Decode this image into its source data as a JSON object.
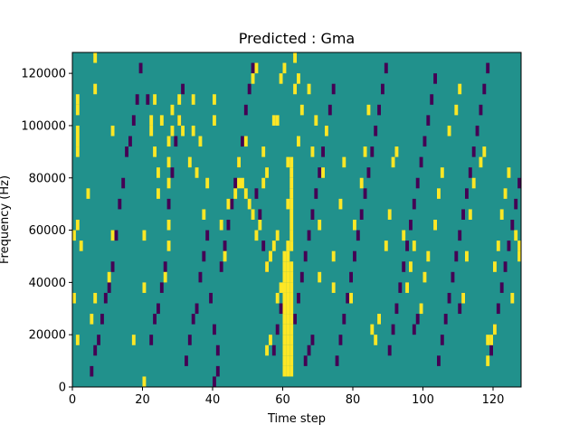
{
  "chart_data": {
    "type": "heatmap",
    "title": "Predicted : Gma",
    "xlabel": "Time step",
    "ylabel": "Frequency (Hz)",
    "xlim": [
      0,
      128
    ],
    "ylim": [
      0,
      128000
    ],
    "xticks": [
      0,
      20,
      40,
      60,
      80,
      100,
      120
    ],
    "yticks": [
      0,
      20000,
      40000,
      60000,
      80000,
      100000,
      120000
    ],
    "n_bins": 32,
    "bin_height_hz": 4000,
    "grid": false,
    "colors": {
      "background": "#21918c",
      "high": "#fde725",
      "low": "#440154"
    },
    "high_cells": [
      [
        60,
        1
      ],
      [
        61,
        1
      ],
      [
        62,
        1
      ],
      [
        60,
        2
      ],
      [
        61,
        2
      ],
      [
        62,
        2
      ],
      [
        60,
        3
      ],
      [
        61,
        3
      ],
      [
        62,
        3
      ],
      [
        60,
        4
      ],
      [
        61,
        4
      ],
      [
        62,
        4
      ],
      [
        60,
        5
      ],
      [
        61,
        5
      ],
      [
        62,
        5
      ],
      [
        60,
        6
      ],
      [
        61,
        6
      ],
      [
        62,
        6
      ],
      [
        60,
        7
      ],
      [
        61,
        7
      ],
      [
        62,
        7
      ],
      [
        60,
        8
      ],
      [
        61,
        8
      ],
      [
        62,
        8
      ],
      [
        60,
        9
      ],
      [
        61,
        9
      ],
      [
        62,
        9
      ],
      [
        60,
        10
      ],
      [
        61,
        10
      ],
      [
        62,
        10
      ],
      [
        60,
        11
      ],
      [
        61,
        11
      ],
      [
        62,
        11
      ],
      [
        60,
        12
      ],
      [
        61,
        12
      ],
      [
        61,
        13
      ],
      [
        62,
        13
      ],
      [
        62,
        14
      ],
      [
        62,
        15
      ],
      [
        62,
        16
      ],
      [
        61,
        17
      ],
      [
        62,
        17
      ],
      [
        62,
        18
      ],
      [
        62,
        19
      ],
      [
        62,
        20
      ],
      [
        61,
        21
      ],
      [
        62,
        21
      ],
      [
        47,
        19
      ],
      [
        48,
        19
      ],
      [
        49,
        18
      ],
      [
        50,
        17
      ],
      [
        51,
        16
      ],
      [
        52,
        14
      ],
      [
        53,
        15
      ],
      [
        55,
        11
      ],
      [
        56,
        12
      ],
      [
        57,
        13
      ],
      [
        58,
        14
      ],
      [
        59,
        9
      ],
      [
        58,
        8
      ],
      [
        55,
        3
      ],
      [
        56,
        4
      ],
      [
        20,
        0
      ],
      [
        1,
        4
      ],
      [
        2,
        13
      ],
      [
        1,
        15
      ],
      [
        4,
        18
      ],
      [
        1,
        22
      ],
      [
        1,
        23
      ],
      [
        1,
        24
      ],
      [
        1,
        26
      ],
      [
        1,
        27
      ],
      [
        0,
        14
      ],
      [
        0,
        8
      ],
      [
        5,
        6
      ],
      [
        6,
        8
      ],
      [
        6,
        28
      ],
      [
        6,
        31
      ],
      [
        10,
        10
      ],
      [
        11,
        14
      ],
      [
        11,
        24
      ],
      [
        17,
        4
      ],
      [
        20,
        9
      ],
      [
        20,
        14
      ],
      [
        22,
        24
      ],
      [
        22,
        25
      ],
      [
        23,
        22
      ],
      [
        23,
        27
      ],
      [
        24,
        18
      ],
      [
        24,
        20
      ],
      [
        25,
        25
      ],
      [
        26,
        10
      ],
      [
        27,
        13
      ],
      [
        27,
        15
      ],
      [
        27,
        19
      ],
      [
        27,
        21
      ],
      [
        27,
        23
      ],
      [
        28,
        24
      ],
      [
        28,
        26
      ],
      [
        30,
        25
      ],
      [
        30,
        27
      ],
      [
        31,
        24
      ],
      [
        33,
        21
      ],
      [
        34,
        27
      ],
      [
        35,
        20
      ],
      [
        34,
        24
      ],
      [
        36,
        23
      ],
      [
        37,
        16
      ],
      [
        38,
        19
      ],
      [
        40,
        25
      ],
      [
        40,
        27
      ],
      [
        42,
        15
      ],
      [
        43,
        12
      ],
      [
        44,
        17
      ],
      [
        46,
        18
      ],
      [
        47,
        21
      ],
      [
        49,
        23
      ],
      [
        51,
        29
      ],
      [
        52,
        30
      ],
      [
        54,
        19
      ],
      [
        54,
        22
      ],
      [
        55,
        20
      ],
      [
        56,
        12
      ],
      [
        57,
        25
      ],
      [
        58,
        25
      ],
      [
        59,
        29
      ],
      [
        60,
        30
      ],
      [
        63,
        28
      ],
      [
        63,
        31
      ],
      [
        64,
        23
      ],
      [
        64,
        29
      ],
      [
        65,
        26
      ],
      [
        67,
        28
      ],
      [
        68,
        22
      ],
      [
        69,
        25
      ],
      [
        70,
        10
      ],
      [
        70,
        15
      ],
      [
        71,
        20
      ],
      [
        72,
        24
      ],
      [
        74,
        9
      ],
      [
        74,
        12
      ],
      [
        76,
        17
      ],
      [
        77,
        21
      ],
      [
        79,
        8
      ],
      [
        80,
        15
      ],
      [
        82,
        19
      ],
      [
        83,
        22
      ],
      [
        84,
        26
      ],
      [
        85,
        5
      ],
      [
        86,
        4
      ],
      [
        87,
        6
      ],
      [
        89,
        13
      ],
      [
        90,
        16
      ],
      [
        91,
        21
      ],
      [
        92,
        22
      ],
      [
        94,
        14
      ],
      [
        95,
        9
      ],
      [
        96,
        11
      ],
      [
        97,
        13
      ],
      [
        99,
        7
      ],
      [
        100,
        10
      ],
      [
        101,
        12
      ],
      [
        103,
        15
      ],
      [
        104,
        18
      ],
      [
        105,
        20
      ],
      [
        107,
        24
      ],
      [
        109,
        26
      ],
      [
        110,
        28
      ],
      [
        111,
        8
      ],
      [
        112,
        12
      ],
      [
        113,
        16
      ],
      [
        114,
        19
      ],
      [
        116,
        21
      ],
      [
        117,
        22
      ],
      [
        118,
        4
      ],
      [
        118,
        2
      ],
      [
        119,
        4
      ],
      [
        120,
        5
      ],
      [
        120,
        11
      ],
      [
        121,
        13
      ],
      [
        122,
        16
      ],
      [
        123,
        18
      ],
      [
        124,
        20
      ],
      [
        125,
        8
      ],
      [
        126,
        14
      ],
      [
        127,
        12
      ],
      [
        127,
        13
      ]
    ],
    "low_cells": [
      [
        5,
        1
      ],
      [
        6,
        3
      ],
      [
        7,
        4
      ],
      [
        8,
        6
      ],
      [
        9,
        8
      ],
      [
        10,
        9
      ],
      [
        11,
        11
      ],
      [
        12,
        14
      ],
      [
        13,
        17
      ],
      [
        14,
        19
      ],
      [
        15,
        22
      ],
      [
        16,
        23
      ],
      [
        17,
        25
      ],
      [
        18,
        27
      ],
      [
        19,
        30
      ],
      [
        21,
        27
      ],
      [
        22,
        4
      ],
      [
        23,
        6
      ],
      [
        24,
        7
      ],
      [
        25,
        9
      ],
      [
        26,
        11
      ],
      [
        27,
        17
      ],
      [
        28,
        20
      ],
      [
        29,
        23
      ],
      [
        30,
        25
      ],
      [
        31,
        28
      ],
      [
        32,
        2
      ],
      [
        33,
        4
      ],
      [
        34,
        6
      ],
      [
        35,
        7
      ],
      [
        36,
        10
      ],
      [
        37,
        12
      ],
      [
        38,
        14
      ],
      [
        39,
        8
      ],
      [
        40,
        5
      ],
      [
        41,
        3
      ],
      [
        42,
        11
      ],
      [
        43,
        13
      ],
      [
        44,
        15
      ],
      [
        45,
        17
      ],
      [
        46,
        19
      ],
      [
        47,
        21
      ],
      [
        48,
        23
      ],
      [
        49,
        26
      ],
      [
        50,
        28
      ],
      [
        51,
        30
      ],
      [
        52,
        18
      ],
      [
        53,
        16
      ],
      [
        54,
        13
      ],
      [
        55,
        11
      ],
      [
        57,
        3
      ],
      [
        58,
        5
      ],
      [
        59,
        7
      ],
      [
        63,
        6
      ],
      [
        64,
        8
      ],
      [
        65,
        10
      ],
      [
        66,
        12
      ],
      [
        67,
        14
      ],
      [
        68,
        16
      ],
      [
        69,
        18
      ],
      [
        70,
        20
      ],
      [
        71,
        22
      ],
      [
        72,
        24
      ],
      [
        73,
        26
      ],
      [
        74,
        28
      ],
      [
        75,
        2
      ],
      [
        76,
        4
      ],
      [
        77,
        6
      ],
      [
        78,
        8
      ],
      [
        79,
        10
      ],
      [
        80,
        12
      ],
      [
        81,
        14
      ],
      [
        82,
        16
      ],
      [
        83,
        18
      ],
      [
        84,
        20
      ],
      [
        85,
        22
      ],
      [
        86,
        24
      ],
      [
        87,
        26
      ],
      [
        88,
        28
      ],
      [
        89,
        30
      ],
      [
        90,
        3
      ],
      [
        91,
        5
      ],
      [
        92,
        7
      ],
      [
        93,
        9
      ],
      [
        94,
        11
      ],
      [
        95,
        13
      ],
      [
        96,
        15
      ],
      [
        97,
        17
      ],
      [
        98,
        19
      ],
      [
        99,
        21
      ],
      [
        100,
        23
      ],
      [
        101,
        25
      ],
      [
        102,
        27
      ],
      [
        103,
        29
      ],
      [
        104,
        2
      ],
      [
        105,
        4
      ],
      [
        106,
        6
      ],
      [
        107,
        8
      ],
      [
        108,
        10
      ],
      [
        109,
        12
      ],
      [
        110,
        14
      ],
      [
        111,
        16
      ],
      [
        112,
        18
      ],
      [
        113,
        20
      ],
      [
        114,
        22
      ],
      [
        115,
        24
      ],
      [
        116,
        26
      ],
      [
        117,
        28
      ],
      [
        118,
        30
      ],
      [
        119,
        3
      ],
      [
        120,
        5
      ],
      [
        121,
        7
      ],
      [
        122,
        9
      ],
      [
        123,
        11
      ],
      [
        124,
        13
      ],
      [
        125,
        15
      ],
      [
        126,
        17
      ],
      [
        127,
        19
      ],
      [
        40,
        0
      ],
      [
        41,
        1
      ],
      [
        66,
        2
      ],
      [
        67,
        3
      ],
      [
        68,
        4
      ],
      [
        97,
        5
      ],
      [
        98,
        6
      ],
      [
        110,
        7
      ],
      [
        111,
        8
      ]
    ]
  }
}
